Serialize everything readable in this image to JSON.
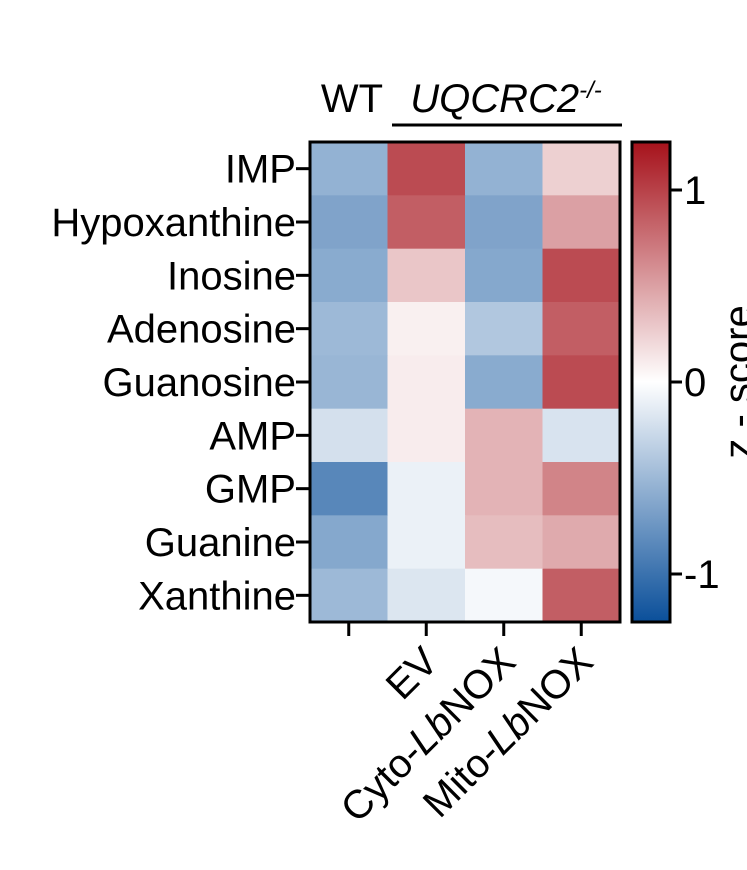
{
  "chart_data": {
    "type": "heatmap",
    "title": "",
    "xlabel": "",
    "ylabel": "",
    "group_labels": {
      "wt": "WT",
      "mutant": "UQCRC2",
      "mutant_superscript": "-/-"
    },
    "columns": [
      {
        "prefix": "",
        "italic": "",
        "suffix": ""
      },
      {
        "prefix": "EV",
        "italic": "",
        "suffix": ""
      },
      {
        "prefix": "Cyto-",
        "italic": "Lb",
        "suffix": "NOX"
      },
      {
        "prefix": "Mito-",
        "italic": "Lb",
        "suffix": "NOX"
      }
    ],
    "rows": [
      "IMP",
      "Hypoxanthine",
      "Inosine",
      "Adenosine",
      "Guanosine",
      "AMP",
      "GMP",
      "Guanine",
      "Xanthine"
    ],
    "values": [
      [
        -0.55,
        0.95,
        -0.55,
        0.25
      ],
      [
        -0.65,
        0.85,
        -0.65,
        0.5
      ],
      [
        -0.6,
        0.3,
        -0.62,
        0.95
      ],
      [
        -0.5,
        0.08,
        -0.4,
        0.85
      ],
      [
        -0.52,
        0.1,
        -0.6,
        0.95
      ],
      [
        -0.22,
        0.1,
        0.4,
        -0.2
      ],
      [
        -0.85,
        -0.1,
        0.4,
        0.65
      ],
      [
        -0.62,
        -0.1,
        0.35,
        0.45
      ],
      [
        -0.5,
        -0.18,
        -0.05,
        0.85
      ]
    ],
    "colorbar": {
      "label": "z - score",
      "range": [
        -1.25,
        1.25
      ],
      "ticks": [
        -1,
        0,
        1
      ],
      "colors": {
        "low": "#0a4f9a",
        "mid": "#ffffff",
        "high": "#a6121b"
      }
    },
    "grid": false
  }
}
